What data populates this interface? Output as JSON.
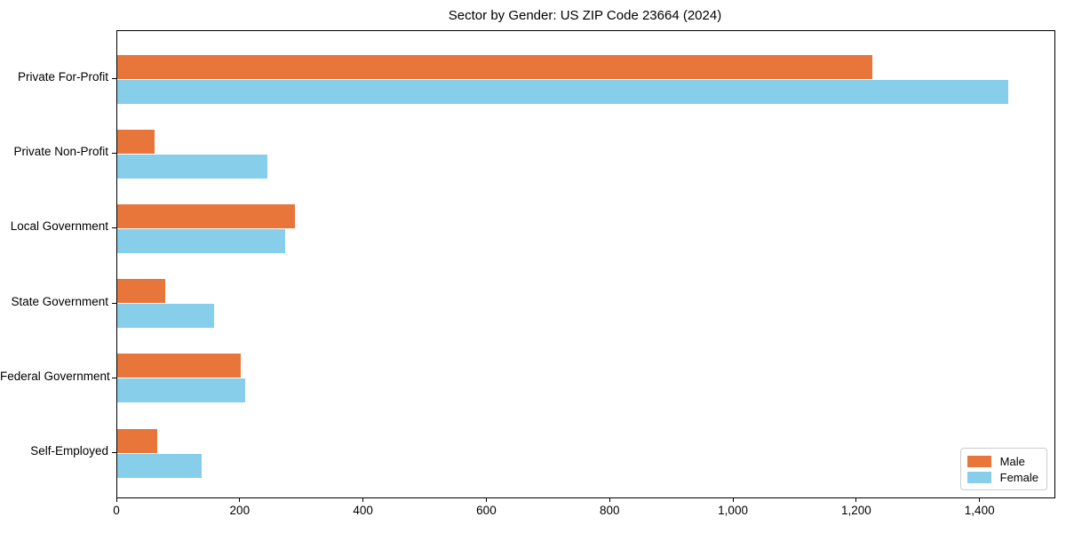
{
  "chart_data": {
    "type": "bar",
    "orientation": "horizontal",
    "title": "Sector by Gender: US ZIP Code 23664 (2024)",
    "categories": [
      "Private For-Profit",
      "Private Non-Profit",
      "Local Government",
      "State Government",
      "Federal Government",
      "Self-Employed"
    ],
    "series": [
      {
        "name": "Male",
        "color": "#E8763B",
        "values": [
          1225,
          60,
          288,
          78,
          200,
          65
        ]
      },
      {
        "name": "Female",
        "color": "#87CEEB",
        "values": [
          1445,
          243,
          272,
          157,
          207,
          137
        ]
      }
    ],
    "xlabel": "",
    "ylabel": "",
    "xlim": [
      0,
      1520
    ],
    "xticks": [
      0,
      200,
      400,
      600,
      800,
      1000,
      1200,
      1400
    ],
    "xtick_labels": [
      "0",
      "200",
      "400",
      "600",
      "800",
      "1,000",
      "1,200",
      "1,400"
    ],
    "grid": false,
    "legend": {
      "position": "lower right",
      "entries": [
        "Male",
        "Female"
      ]
    }
  }
}
